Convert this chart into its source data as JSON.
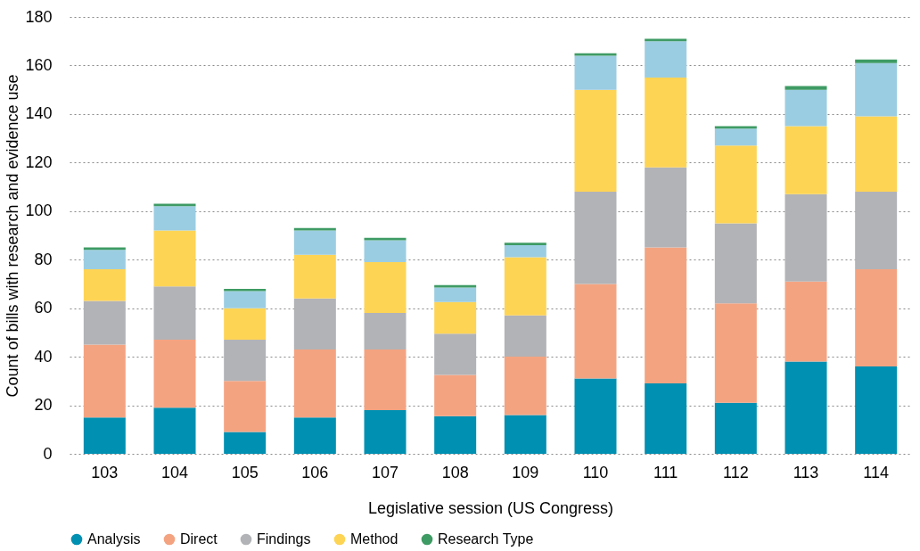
{
  "chart_data": {
    "type": "bar",
    "stacked": true,
    "xlabel": "Legislative session (US Congress)",
    "ylabel": "Count of bills with research and evidence use",
    "categories": [
      "103",
      "104",
      "105",
      "106",
      "107",
      "108",
      "109",
      "110",
      "111",
      "112",
      "113",
      "114"
    ],
    "series": [
      {
        "name": "Analysis",
        "color": "#0090b2",
        "values": [
          15,
          19,
          9,
          15,
          18,
          15.5,
          16,
          31,
          29,
          21,
          38,
          36
        ]
      },
      {
        "name": "Direct",
        "color": "#f4a381",
        "values": [
          30,
          28,
          21,
          28,
          25,
          17,
          24,
          39,
          56,
          41,
          33,
          40
        ]
      },
      {
        "name": "Findings",
        "color": "#b2b3b6",
        "values": [
          18,
          22,
          17,
          21,
          15,
          17,
          17,
          38,
          33,
          33,
          36,
          32
        ]
      },
      {
        "name": "Method",
        "color": "#fed455",
        "values": [
          13,
          23,
          13,
          18,
          21,
          13,
          24,
          42,
          37,
          32,
          28,
          31
        ]
      },
      {
        "color": "#9bcde2",
        "values": [
          8,
          10,
          7,
          10,
          9,
          6,
          5,
          14,
          15,
          7,
          15,
          22
        ]
      },
      {
        "name": "Research Type",
        "color": "#3e9b64",
        "values": [
          1,
          1,
          1,
          1,
          1,
          1,
          1,
          1,
          1,
          1,
          1.5,
          1.5
        ]
      }
    ],
    "ylim": [
      0,
      180
    ],
    "yticks": [
      0,
      20,
      40,
      60,
      80,
      100,
      120,
      140,
      160,
      180
    ],
    "grid": "y",
    "legend": "bottom"
  }
}
